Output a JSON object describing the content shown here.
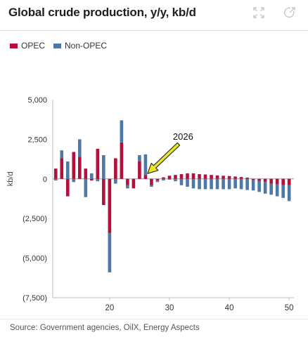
{
  "header": {
    "title": "Global crude production, y/y, kb/d",
    "expand_icon": "expand-icon",
    "share_icon": "share-icon"
  },
  "legend": {
    "items": [
      {
        "label": "OPEC",
        "color": "#b5103c"
      },
      {
        "label": "Non-OPEC",
        "color": "#4e79a7"
      }
    ]
  },
  "footer": {
    "source": "Source: Government agencies, OilX, Energy Aspects"
  },
  "chart_data": {
    "type": "bar",
    "stacked": true,
    "ylabel": "kb/d",
    "xlabel": "",
    "ylim": [
      -7500,
      5000
    ],
    "xlim": [
      10.5,
      50.8
    ],
    "yticks": [
      5000,
      2500,
      0,
      -2500,
      -5000,
      -7500
    ],
    "ytick_labels": [
      "5,000",
      "2,500",
      "0",
      "(2,500)",
      "(5,000)",
      "(7,500)"
    ],
    "xticks": [
      20,
      30,
      40,
      50
    ],
    "xtick_labels": [
      "20",
      "30",
      "40",
      "50"
    ],
    "x": [
      11,
      12,
      13,
      14,
      15,
      16,
      17,
      18,
      19,
      20,
      21,
      22,
      23,
      24,
      25,
      26,
      27,
      28,
      29,
      30,
      31,
      32,
      33,
      34,
      35,
      36,
      37,
      38,
      39,
      40,
      41,
      42,
      43,
      44,
      45,
      46,
      47,
      48,
      49,
      50
    ],
    "series": [
      {
        "name": "OPEC",
        "color": "#b5103c",
        "values": [
          650,
          1300,
          -1100,
          1700,
          1400,
          650,
          -100,
          1900,
          -1650,
          -3400,
          1300,
          2300,
          -400,
          -600,
          1100,
          250,
          -400,
          -100,
          100,
          200,
          250,
          300,
          350,
          350,
          300,
          280,
          250,
          220,
          200,
          180,
          150,
          120,
          80,
          -80,
          -120,
          -180,
          -300,
          -350,
          -400,
          -400
        ]
      },
      {
        "name": "Non-OPEC",
        "color": "#4e79a7",
        "values": [
          -100,
          500,
          1100,
          -200,
          1100,
          -1150,
          350,
          -150,
          1500,
          -2500,
          -300,
          1400,
          -200,
          0,
          400,
          1300,
          -100,
          -100,
          -100,
          -50,
          -150,
          -400,
          -500,
          -600,
          -650,
          -650,
          -650,
          -650,
          -650,
          -650,
          -600,
          -650,
          -700,
          -650,
          -700,
          -750,
          -700,
          -750,
          -800,
          -1000
        ]
      }
    ],
    "annotation": {
      "text": "2026",
      "x": 26,
      "y": 250,
      "arrow_color": "#e8e81a"
    }
  }
}
